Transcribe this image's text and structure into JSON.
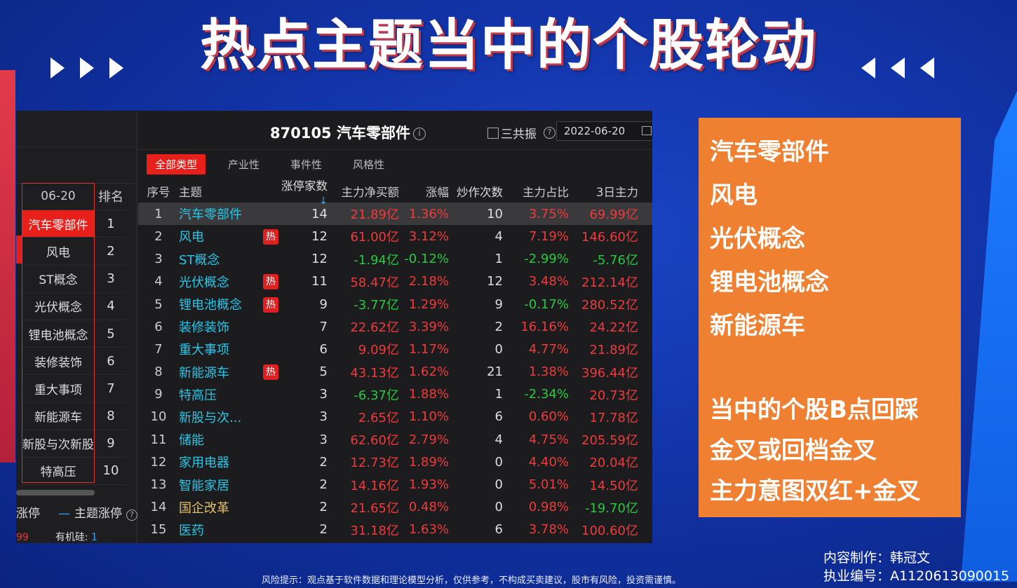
{
  "headline": "热点主题当中的个股轮动",
  "screenshot": {
    "left_pane": {
      "header_date": "06-20",
      "header_rank": "排名",
      "rows": [
        {
          "name": "汽车零部件",
          "rank": "1"
        },
        {
          "name": "风电",
          "rank": "2"
        },
        {
          "name": "ST概念",
          "rank": "3"
        },
        {
          "name": "光伏概念",
          "rank": "4"
        },
        {
          "name": "锂电池概念",
          "rank": "5"
        },
        {
          "name": "装修装饰",
          "rank": "6"
        },
        {
          "name": "重大事项",
          "rank": "7"
        },
        {
          "name": "新能源车",
          "rank": "8"
        },
        {
          "name": "新股与次新股",
          "rank": "9"
        },
        {
          "name": "特高压",
          "rank": "10"
        }
      ],
      "legend_limit_up": "涨停",
      "legend_theme_limit_up": "主题涨停",
      "bottom_left_value": "99",
      "bottom_label": "有机硅:",
      "bottom_value": "1"
    },
    "title_code": "870105",
    "title_name": "汽车零部件",
    "info_icon": "info-icon",
    "checkbox_label": "三共振",
    "date_value": "2022-06-20",
    "tabs": [
      "全部类型",
      "产业性",
      "事件性",
      "风格性"
    ],
    "active_tab": "全部类型",
    "columns": [
      "序号",
      "主题",
      "涨停家数",
      "主力净买额",
      "涨幅",
      "炒作次数",
      "主力占比",
      "3日主力"
    ],
    "hot_badge": "热",
    "colors": {
      "up": "#ee3b3b",
      "down": "#28c840",
      "theme": "#28c6e8",
      "accent": "#e8201c"
    },
    "rows": [
      {
        "idx": "1",
        "name": "汽车零部件",
        "hot": false,
        "count": "14",
        "net": "21.89亿",
        "chg": "1.36%",
        "times": "10",
        "ratio": "3.75%",
        "d3": "69.99亿"
      },
      {
        "idx": "2",
        "name": "风电",
        "hot": true,
        "count": "12",
        "net": "61.00亿",
        "chg": "3.12%",
        "times": "4",
        "ratio": "7.19%",
        "d3": "146.60亿"
      },
      {
        "idx": "3",
        "name": "ST概念",
        "hot": false,
        "count": "12",
        "net": "-1.94亿",
        "chg": "-0.12%",
        "times": "1",
        "ratio": "-2.99%",
        "d3": "-5.76亿"
      },
      {
        "idx": "4",
        "name": "光伏概念",
        "hot": true,
        "count": "11",
        "net": "58.47亿",
        "chg": "2.18%",
        "times": "12",
        "ratio": "3.48%",
        "d3": "212.14亿"
      },
      {
        "idx": "5",
        "name": "锂电池概念",
        "hot": true,
        "count": "9",
        "net": "-3.77亿",
        "chg": "1.29%",
        "times": "9",
        "ratio": "-0.17%",
        "d3": "280.52亿"
      },
      {
        "idx": "6",
        "name": "装修装饰",
        "hot": false,
        "count": "7",
        "net": "22.62亿",
        "chg": "3.39%",
        "times": "2",
        "ratio": "16.16%",
        "d3": "24.22亿"
      },
      {
        "idx": "7",
        "name": "重大事项",
        "hot": false,
        "count": "6",
        "net": "9.09亿",
        "chg": "1.17%",
        "times": "0",
        "ratio": "4.77%",
        "d3": "21.89亿"
      },
      {
        "idx": "8",
        "name": "新能源车",
        "hot": true,
        "count": "5",
        "net": "43.13亿",
        "chg": "1.62%",
        "times": "21",
        "ratio": "1.38%",
        "d3": "396.44亿"
      },
      {
        "idx": "9",
        "name": "特高压",
        "hot": false,
        "count": "3",
        "net": "-6.37亿",
        "chg": "1.88%",
        "times": "1",
        "ratio": "-2.34%",
        "d3": "20.73亿"
      },
      {
        "idx": "10",
        "name": "新股与次...",
        "hot": false,
        "count": "3",
        "net": "2.65亿",
        "chg": "1.10%",
        "times": "6",
        "ratio": "0.60%",
        "d3": "17.78亿"
      },
      {
        "idx": "11",
        "name": "储能",
        "hot": false,
        "count": "3",
        "net": "62.60亿",
        "chg": "2.79%",
        "times": "4",
        "ratio": "4.75%",
        "d3": "205.59亿"
      },
      {
        "idx": "12",
        "name": "家用电器",
        "hot": false,
        "count": "2",
        "net": "12.73亿",
        "chg": "1.89%",
        "times": "0",
        "ratio": "4.40%",
        "d3": "20.04亿"
      },
      {
        "idx": "13",
        "name": "智能家居",
        "hot": false,
        "count": "2",
        "net": "14.16亿",
        "chg": "1.93%",
        "times": "0",
        "ratio": "5.01%",
        "d3": "14.50亿"
      },
      {
        "idx": "14",
        "name": "国企改革",
        "hot": false,
        "gold": true,
        "count": "2",
        "net": "21.65亿",
        "chg": "0.48%",
        "times": "0",
        "ratio": "0.98%",
        "d3": "-19.70亿"
      },
      {
        "idx": "15",
        "name": "医药",
        "hot": false,
        "count": "2",
        "net": "31.18亿",
        "chg": "1.63%",
        "times": "6",
        "ratio": "3.78%",
        "d3": "100.60亿"
      }
    ]
  },
  "note": {
    "themes": [
      "汽车零部件",
      "风电",
      "光伏概念",
      "锂电池概念",
      "新能源车"
    ],
    "tips": [
      "当中的个股B点回踩",
      "金叉或回档金叉",
      "主力意图双红+金叉"
    ]
  },
  "credit": {
    "author": "内容制作：韩冠文",
    "license": "执业编号：A1120613090015"
  },
  "risk_notice": "风险提示：观点基于软件数据和理论模型分析，仅供参考，不构成买卖建议，股市有风险，投资需谨慎。"
}
